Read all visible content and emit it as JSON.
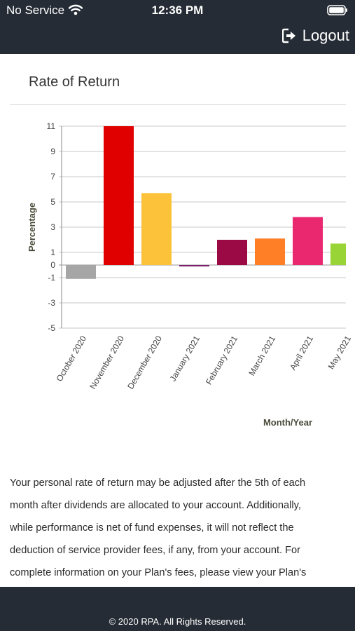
{
  "status_bar": {
    "carrier": "No Service",
    "time": "12:36 PM",
    "wifi_icon": "wifi-icon",
    "battery_icon": "battery-icon"
  },
  "header": {
    "logout_label": "Logout",
    "logout_icon": "logout-icon",
    "background": "#262c35"
  },
  "page": {
    "title": "Rate of Return"
  },
  "chart_data": {
    "type": "bar",
    "title": "",
    "xlabel": "Month/Year",
    "ylabel": "Percentage",
    "ylim": [
      -5,
      11
    ],
    "yticks": [
      "11",
      "9",
      "7",
      "5",
      "3",
      "1",
      "0",
      "-1",
      "-3",
      "-5"
    ],
    "ytick_values": [
      11,
      9,
      7,
      5,
      3,
      1,
      0,
      -1,
      -3,
      -5
    ],
    "grid": true,
    "categories": [
      "October 2020",
      "November 2020",
      "December 2020",
      "January 2021",
      "February 2021",
      "March 2021",
      "April 2021",
      "May 2021"
    ],
    "values": [
      -1.1,
      11.0,
      5.7,
      -0.1,
      2.0,
      2.1,
      3.8,
      1.7
    ],
    "colors": [
      "#a6a6a6",
      "#e00000",
      "#fbc23a",
      "#7a1f6a",
      "#9b0a45",
      "#ff7f27",
      "#ea2870",
      "#99d437"
    ]
  },
  "disclaimer": {
    "lines": [
      "Your personal rate of return may be adjusted after the 5th of each",
      "month after dividends are allocated to your account. Additionally,",
      "while performance is net of fund expenses, it will not reflect the",
      "deduction of service provider fees, if any, from your account. For",
      "complete information on your Plan's fees, please view your Plan's"
    ]
  },
  "footer": {
    "copyright": "© 2020 RPA. All Rights Reserved."
  }
}
